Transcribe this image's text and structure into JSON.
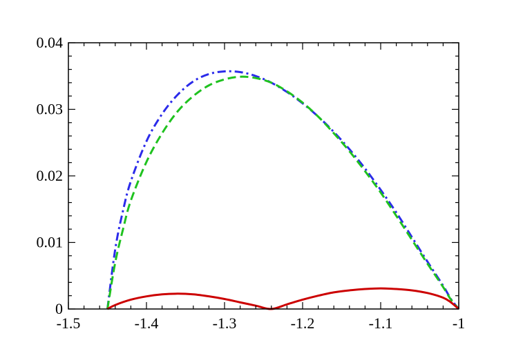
{
  "chart_data": {
    "type": "line",
    "title": "",
    "xlabel": "",
    "ylabel": "",
    "xlim": [
      -1.5,
      -1.0
    ],
    "ylim": [
      0,
      0.04
    ],
    "x_ticks": [
      -1.5,
      -1.4,
      -1.3,
      -1.2,
      -1.1,
      -1.0
    ],
    "x_tick_labels": [
      "-1.5",
      "-1.4",
      "-1.3",
      "-1.2",
      "-1.1",
      "-1"
    ],
    "y_ticks": [
      0,
      0.01,
      0.02,
      0.03,
      0.04
    ],
    "y_tick_labels": [
      "0",
      "0.01",
      "0.02",
      "0.03",
      "0.04"
    ],
    "grid": false,
    "legend": "none",
    "series": [
      {
        "color": "#2b2bea",
        "style": "dash-dot",
        "x": [
          -1.45,
          -1.44,
          -1.43,
          -1.42,
          -1.4,
          -1.38,
          -1.36,
          -1.34,
          -1.32,
          -1.3,
          -1.28,
          -1.26,
          -1.24,
          -1.22,
          -1.2,
          -1.18,
          -1.16,
          -1.14,
          -1.12,
          -1.1,
          -1.08,
          -1.06,
          -1.04,
          -1.02,
          -1.01,
          -1.0
        ],
        "y": [
          0.0,
          0.009,
          0.0148,
          0.0192,
          0.0252,
          0.0293,
          0.0322,
          0.0342,
          0.0353,
          0.0357,
          0.0356,
          0.035,
          0.034,
          0.0326,
          0.0309,
          0.0289,
          0.0266,
          0.024,
          0.0211,
          0.0179,
          0.0145,
          0.0108,
          0.0071,
          0.0035,
          0.0015,
          0.0
        ]
      },
      {
        "color": "#1fc21f",
        "style": "dashed",
        "x": [
          -1.45,
          -1.44,
          -1.43,
          -1.42,
          -1.4,
          -1.38,
          -1.36,
          -1.34,
          -1.32,
          -1.3,
          -1.28,
          -1.26,
          -1.24,
          -1.22,
          -1.2,
          -1.18,
          -1.16,
          -1.14,
          -1.12,
          -1.1,
          -1.08,
          -1.06,
          -1.04,
          -1.02,
          -1.01,
          -1.0
        ],
        "y": [
          0.0,
          0.007,
          0.012,
          0.0163,
          0.0221,
          0.0264,
          0.0297,
          0.032,
          0.0336,
          0.0345,
          0.0349,
          0.0347,
          0.034,
          0.0327,
          0.031,
          0.0289,
          0.0264,
          0.0237,
          0.0207,
          0.0175,
          0.014,
          0.0104,
          0.0068,
          0.0033,
          0.0014,
          0.0
        ]
      },
      {
        "color": "#cc0000",
        "style": "solid",
        "x": [
          -1.45,
          -1.44,
          -1.42,
          -1.4,
          -1.38,
          -1.36,
          -1.34,
          -1.32,
          -1.3,
          -1.28,
          -1.26,
          -1.24,
          -1.22,
          -1.2,
          -1.18,
          -1.16,
          -1.14,
          -1.12,
          -1.1,
          -1.08,
          -1.06,
          -1.04,
          -1.02,
          -1.01,
          -1.0
        ],
        "y": [
          0.0,
          0.0006,
          0.0014,
          0.0019,
          0.0022,
          0.0023,
          0.0022,
          0.0019,
          0.0015,
          0.001,
          0.0005,
          0.0,
          0.0007,
          0.0014,
          0.002,
          0.0025,
          0.0028,
          0.003,
          0.0031,
          0.003,
          0.0028,
          0.0024,
          0.0017,
          0.001,
          0.0
        ]
      }
    ]
  }
}
